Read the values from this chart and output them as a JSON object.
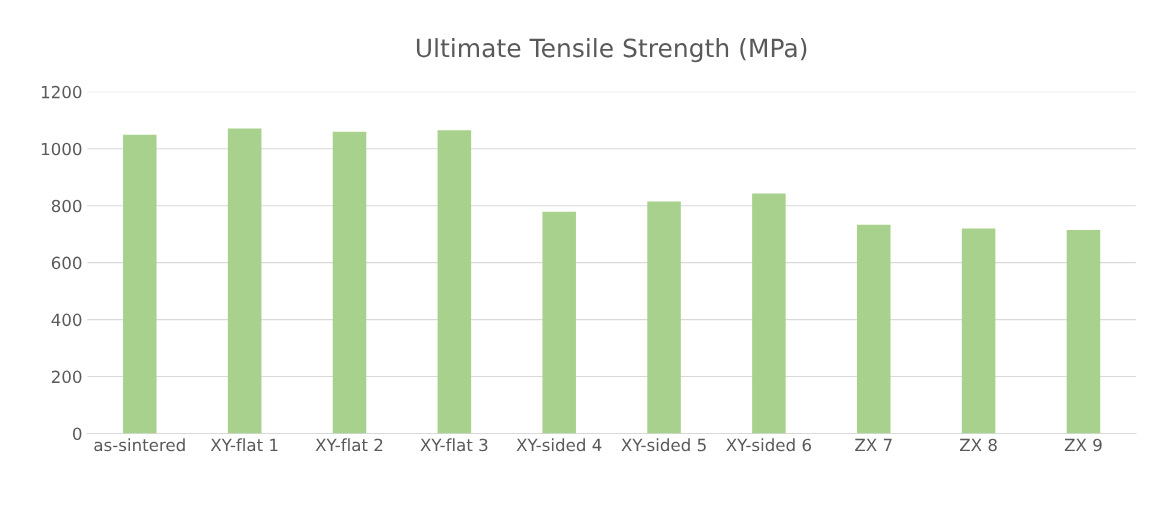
{
  "chart_data": {
    "type": "bar",
    "title": "Ultimate Tensile Strength (MPa)",
    "categories": [
      "as-sintered",
      "XY-flat 1",
      "XY-flat 2",
      "XY-flat 3",
      "XY-sided 4",
      "XY-sided 5",
      "XY-sided 6",
      "ZX 7",
      "ZX 8",
      "ZX 9"
    ],
    "values": [
      1049,
      1071,
      1060,
      1065,
      779,
      815,
      843,
      733,
      720,
      715
    ],
    "color": "#a9d18e",
    "ylim": [
      0,
      1200
    ],
    "yticks": [
      0,
      200,
      400,
      600,
      800,
      1000,
      1200
    ],
    "grid": "y"
  }
}
